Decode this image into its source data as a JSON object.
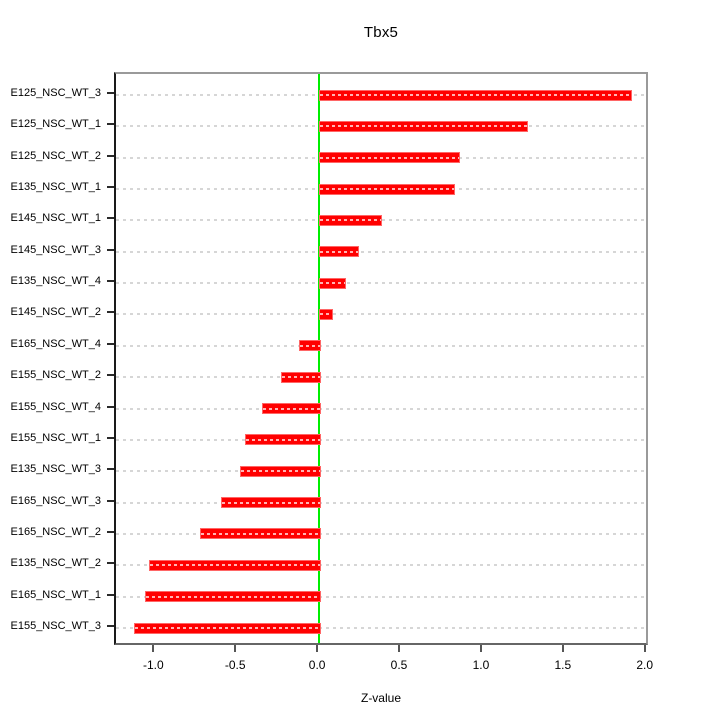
{
  "chart_data": {
    "type": "bar",
    "orientation": "horizontal",
    "title": "Tbx5",
    "xlabel": "Z-value",
    "ylabel": "",
    "categories": [
      "E125_NSC_WT_3",
      "E125_NSC_WT_1",
      "E125_NSC_WT_2",
      "E135_NSC_WT_1",
      "E145_NSC_WT_1",
      "E145_NSC_WT_3",
      "E135_NSC_WT_4",
      "E145_NSC_WT_2",
      "E165_NSC_WT_4",
      "E155_NSC_WT_2",
      "E155_NSC_WT_4",
      "E155_NSC_WT_1",
      "E135_NSC_WT_3",
      "E165_NSC_WT_3",
      "E165_NSC_WT_2",
      "E135_NSC_WT_2",
      "E165_NSC_WT_1",
      "E155_NSC_WT_3"
    ],
    "values": [
      1.9,
      1.26,
      0.85,
      0.82,
      0.37,
      0.23,
      0.15,
      0.07,
      -0.12,
      -0.23,
      -0.35,
      -0.45,
      -0.48,
      -0.6,
      -0.73,
      -1.04,
      -1.06,
      -1.13
    ],
    "x_ticks": [
      -1.0,
      -0.5,
      0.0,
      0.5,
      1.0,
      1.5,
      2.0
    ],
    "x_tick_labels": [
      "-1.0",
      "-0.5",
      "0.0",
      "0.5",
      "1.0",
      "1.5",
      "2.0"
    ],
    "xlim": [
      -1.24,
      2.02
    ],
    "grid": true,
    "legend": null,
    "colors": {
      "bar_fill": "#ff0000",
      "bar_border": "#ff6666",
      "bar_dash": "#ffb3b3",
      "grid": "#d6d6d6",
      "zero_line": "#00ee00",
      "text": "#000000"
    }
  }
}
